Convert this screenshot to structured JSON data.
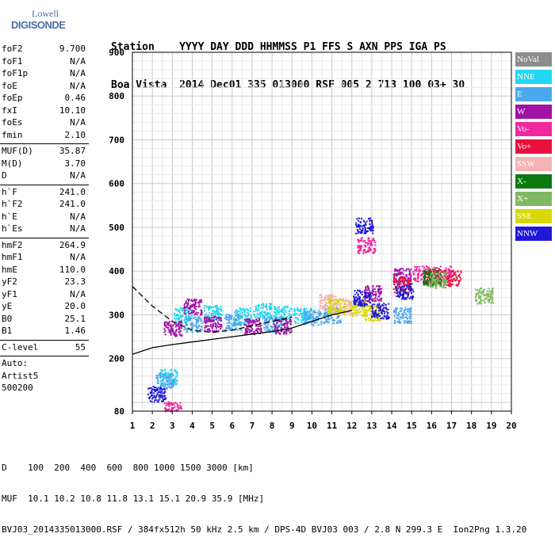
{
  "logo": {
    "line1": "Lowell",
    "line2": "DIGISONDE"
  },
  "header": {
    "row1": [
      "Station",
      "YYYY DAY",
      "DDD",
      "HHMMSS",
      "P1",
      "FFS",
      "S",
      "AXN",
      "PPS",
      "IGA",
      "PS"
    ],
    "row2": [
      "Boa Vista",
      "2014 Dec01",
      "335",
      "013000",
      "RSF",
      "005",
      "2",
      "713",
      "100",
      "03+",
      "30"
    ]
  },
  "left_panel": {
    "group1": [
      {
        "k": "foF2",
        "v": "9.700"
      },
      {
        "k": "foF1",
        "v": "N/A"
      },
      {
        "k": "foF1p",
        "v": "N/A"
      },
      {
        "k": "foE",
        "v": "N/A"
      },
      {
        "k": "foEp",
        "v": "0.46"
      },
      {
        "k": "fxI",
        "v": "10.10"
      },
      {
        "k": "foEs",
        "v": "N/A"
      },
      {
        "k": "fmin",
        "v": "2.10"
      }
    ],
    "group2": [
      {
        "k": "MUF(D)",
        "v": "35.87"
      },
      {
        "k": "M(D)",
        "v": "3.70"
      },
      {
        "k": "D",
        "v": "N/A"
      }
    ],
    "group3": [
      {
        "k": "h`F",
        "v": "241.0"
      },
      {
        "k": "h`F2",
        "v": "241.0"
      },
      {
        "k": "h`E",
        "v": "N/A"
      },
      {
        "k": "h`Es",
        "v": "N/A"
      }
    ],
    "group4": [
      {
        "k": "hmF2",
        "v": "264.9"
      },
      {
        "k": "hmF1",
        "v": "N/A"
      },
      {
        "k": "hmE",
        "v": "110.0"
      },
      {
        "k": "yF2",
        "v": "23.3"
      },
      {
        "k": "yF1",
        "v": "N/A"
      },
      {
        "k": "yE",
        "v": "20.0"
      },
      {
        "k": "B0",
        "v": "25.1"
      },
      {
        "k": "B1",
        "v": "1.46"
      }
    ],
    "group5": [
      {
        "k": "C-level",
        "v": "55"
      }
    ],
    "auto": [
      "Auto:",
      "Artist5",
      "500200"
    ]
  },
  "legend": [
    {
      "label": "NoVal",
      "color": "#8c8c8c"
    },
    {
      "label": "NNE",
      "color": "#22d8f0"
    },
    {
      "label": "E",
      "color": "#4aa8ec"
    },
    {
      "label": "W",
      "color": "#a012a8"
    },
    {
      "label": "Vo-",
      "color": "#f028a0"
    },
    {
      "label": "Vo+",
      "color": "#e8103c"
    },
    {
      "label": "SSW",
      "color": "#f4b4b4"
    },
    {
      "label": "X-",
      "color": "#0a7a10"
    },
    {
      "label": "X+",
      "color": "#80b860"
    },
    {
      "label": "SSE",
      "color": "#d8d808"
    },
    {
      "label": "NNW",
      "color": "#2018d8"
    }
  ],
  "footer": {
    "line1": "D    100  200  400  600  800 1000 1500 3000 [km]",
    "line2": "MUF  10.1 10.2 10.8 11.8 13.1 15.1 20.9 35.9 [MHz]",
    "line3": "BVJ03_2014335013000.RSF / 384fx512h 50 kHz 2.5 km / DPS-4D BVJ03 003 / 2.8 N 299.3 E  Ion2Png 1.3.20"
  },
  "chart_data": {
    "type": "scatter",
    "x_label": "",
    "y_label": "",
    "xlim": [
      1,
      20
    ],
    "ylim": [
      80,
      900
    ],
    "x_ticks": [
      1,
      2,
      3,
      4,
      5,
      6,
      7,
      8,
      9,
      10,
      11,
      12,
      13,
      14,
      15,
      16,
      17,
      18,
      19,
      20
    ],
    "y_ticks": [
      80,
      200,
      300,
      400,
      500,
      600,
      700,
      800,
      900
    ],
    "grid": true,
    "series": [
      {
        "name": "NNE",
        "clusters": [
          [
            3.5,
            300
          ],
          [
            5,
            305
          ],
          [
            6.5,
            300
          ],
          [
            7.5,
            310
          ],
          [
            8.5,
            305
          ],
          [
            9.5,
            300
          ],
          [
            2.8,
            160
          ]
        ]
      },
      {
        "name": "E",
        "clusters": [
          [
            4,
            280
          ],
          [
            6,
            285
          ],
          [
            8,
            280
          ],
          [
            10,
            295
          ],
          [
            11,
            300
          ],
          [
            14.5,
            300
          ],
          [
            2.6,
            150
          ]
        ]
      },
      {
        "name": "W",
        "clusters": [
          [
            3,
            270
          ],
          [
            4,
            320
          ],
          [
            5,
            280
          ],
          [
            7,
            275
          ],
          [
            8.5,
            275
          ],
          [
            13,
            350
          ],
          [
            14.5,
            390
          ]
        ]
      },
      {
        "name": "Vo-",
        "clusters": [
          [
            12.7,
            460
          ],
          [
            15.5,
            395
          ],
          [
            16.5,
            395
          ],
          [
            3,
            85
          ]
        ]
      },
      {
        "name": "Vo+",
        "clusters": [
          [
            16,
            390
          ],
          [
            17,
            385
          ],
          [
            14.5,
            370
          ]
        ]
      },
      {
        "name": "SSW",
        "clusters": [
          [
            10.8,
            330
          ],
          [
            11.5,
            320
          ]
        ]
      },
      {
        "name": "X-",
        "clusters": [
          [
            16,
            385
          ]
        ]
      },
      {
        "name": "X+",
        "clusters": [
          [
            16.3,
            380
          ],
          [
            18.6,
            345
          ]
        ]
      },
      {
        "name": "SSE",
        "clusters": [
          [
            11.2,
            320
          ],
          [
            13,
            305
          ],
          [
            12.3,
            315
          ]
        ]
      },
      {
        "name": "NNW",
        "clusters": [
          [
            12.5,
            340
          ],
          [
            13.4,
            310
          ],
          [
            14.6,
            355
          ],
          [
            12.6,
            505
          ],
          [
            2.2,
            120
          ]
        ]
      }
    ],
    "curves": [
      {
        "style": "dashed",
        "points": [
          [
            1,
            365
          ],
          [
            2,
            320
          ],
          [
            3,
            285
          ],
          [
            4,
            265
          ],
          [
            5,
            260
          ],
          [
            6,
            265
          ],
          [
            7,
            275
          ],
          [
            8,
            285
          ],
          [
            9,
            295
          ]
        ]
      },
      {
        "style": "solid",
        "points": [
          [
            1,
            210
          ],
          [
            2,
            225
          ],
          [
            3,
            232
          ],
          [
            4,
            238
          ],
          [
            5,
            244
          ],
          [
            6,
            250
          ],
          [
            7,
            256
          ],
          [
            8,
            262
          ],
          [
            9,
            270
          ],
          [
            10,
            285
          ],
          [
            11,
            300
          ],
          [
            12,
            310
          ]
        ]
      }
    ]
  }
}
